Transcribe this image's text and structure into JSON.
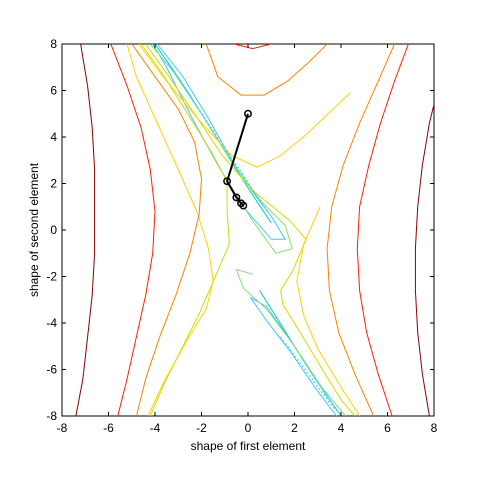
{
  "chart_data": {
    "type": "contour",
    "title": "",
    "xlabel": "shape of first element",
    "ylabel": "shape of second element",
    "xlim": [
      -8,
      8
    ],
    "ylim": [
      -8,
      8
    ],
    "x_ticks": [
      -8,
      -6,
      -4,
      -2,
      0,
      2,
      4,
      6,
      8
    ],
    "y_ticks": [
      -8,
      -6,
      -4,
      -2,
      0,
      2,
      4,
      6,
      8
    ],
    "grid": false,
    "legend": "none",
    "contour_levels": [
      {
        "color": "#00c8c8",
        "curves": [
          [
            [
              -4,
              8
            ],
            [
              -3.3,
              7
            ],
            [
              -2.5,
              5.8
            ],
            [
              -1.5,
              4.2
            ],
            [
              -0.5,
              2.6
            ],
            [
              0.4,
              1.2
            ],
            [
              1.0,
              0.3
            ]
          ],
          [
            [
              4,
              -8
            ],
            [
              3.3,
              -7
            ],
            [
              2.5,
              -5.8
            ],
            [
              1.5,
              -4.2
            ],
            [
              0.5,
              -2.6
            ]
          ]
        ]
      },
      {
        "color": "#40c8ff",
        "curves": [
          [
            [
              -3.9,
              8
            ],
            [
              -2.8,
              6.6
            ],
            [
              -1.7,
              4.8
            ],
            [
              -0.7,
              3.0
            ],
            [
              0.3,
              1.5
            ],
            [
              1.0,
              0.6
            ],
            [
              1.6,
              -0.4
            ],
            [
              1.0,
              -0.4
            ],
            [
              -0.2,
              1.0
            ],
            [
              -1.3,
              2.8
            ],
            [
              -2.4,
              4.8
            ],
            [
              -3.5,
              7.0
            ],
            [
              -4.1,
              8
            ]
          ],
          [
            [
              4.0,
              -8
            ],
            [
              2.9,
              -6.4
            ],
            [
              1.8,
              -4.7
            ],
            [
              0.8,
              -3.3
            ],
            [
              0.1,
              -2.9
            ],
            [
              0.8,
              -3.9
            ],
            [
              1.8,
              -5.2
            ],
            [
              2.9,
              -6.8
            ],
            [
              3.8,
              -8
            ]
          ]
        ]
      },
      {
        "color": "#80e070",
        "curves": [
          [
            [
              -4.2,
              8
            ],
            [
              -3.2,
              6.8
            ],
            [
              -2.0,
              5.0
            ],
            [
              -0.8,
              3.1
            ],
            [
              0.5,
              1.3
            ],
            [
              1.6,
              0.2
            ],
            [
              1.9,
              -0.8
            ],
            [
              1.2,
              -1.0
            ],
            [
              0.2,
              0.4
            ],
            [
              -0.5,
              1.5
            ]
          ],
          [
            [
              4.2,
              -8
            ],
            [
              3.2,
              -6.8
            ],
            [
              2.0,
              -5.0
            ],
            [
              0.8,
              -3.4
            ],
            [
              -0.2,
              -2.5
            ],
            [
              -0.5,
              -1.7
            ],
            [
              0.2,
              -1.9
            ]
          ]
        ]
      },
      {
        "color": "#c8e000",
        "curves": [
          [
            [
              -4.4,
              8
            ],
            [
              -3.4,
              6.6
            ],
            [
              -2.3,
              5.0
            ],
            [
              -1.1,
              3.2
            ],
            [
              0.2,
              1.7
            ],
            [
              1.8,
              0.4
            ],
            [
              2.5,
              -0.4
            ],
            [
              1.9,
              -1.8
            ],
            [
              1.4,
              -2.6
            ],
            [
              1.5,
              -3.2
            ],
            [
              2.3,
              -4.5
            ],
            [
              3.2,
              -6.0
            ],
            [
              4.0,
              -7.3
            ],
            [
              4.6,
              -8
            ]
          ],
          [
            [
              -4.6,
              8
            ],
            [
              -3.6,
              6.6
            ],
            [
              -2.6,
              5.0
            ],
            [
              -1.6,
              3.4
            ],
            [
              -0.9,
              2.1
            ],
            [
              -0.9,
              0.8
            ],
            [
              -0.8,
              -0.6
            ],
            [
              -1.4,
              -2.0
            ],
            [
              -2.1,
              -3.6
            ],
            [
              -2.9,
              -5.2
            ],
            [
              -3.6,
              -6.6
            ],
            [
              -4.2,
              -8
            ]
          ]
        ]
      },
      {
        "color": "#ffd000",
        "curves": [
          [
            [
              -4.7,
              8
            ],
            [
              -3.5,
              6.4
            ],
            [
              -2.0,
              4.6
            ],
            [
              -0.7,
              3.2
            ],
            [
              0.4,
              2.7
            ],
            [
              1.4,
              3.2
            ],
            [
              2.5,
              4.1
            ],
            [
              4.4,
              5.9
            ]
          ],
          [
            [
              -4.3,
              -8
            ],
            [
              -3.6,
              -6.5
            ],
            [
              -2.6,
              -4.7
            ],
            [
              -1.8,
              -3.4
            ],
            [
              -1.5,
              -2.2
            ],
            [
              -1.7,
              -0.8
            ],
            [
              -2.2,
              0.8
            ],
            [
              -3.0,
              2.6
            ],
            [
              -3.9,
              4.6
            ],
            [
              -4.8,
              6.6
            ],
            [
              -5.2,
              8
            ]
          ],
          [
            [
              4.8,
              -8
            ],
            [
              3.9,
              -6.6
            ],
            [
              3.0,
              -5.1
            ],
            [
              2.4,
              -3.7
            ],
            [
              2.1,
              -2.2
            ],
            [
              2.4,
              -0.6
            ],
            [
              3.1,
              1.0
            ]
          ]
        ]
      },
      {
        "color": "#ff8000",
        "curves": [
          [
            [
              -5.0,
              8
            ],
            [
              -4.0,
              6.6
            ],
            [
              -3.0,
              5.2
            ],
            [
              -2.3,
              3.8
            ],
            [
              -2.0,
              2.2
            ],
            [
              -2.1,
              0.7
            ],
            [
              -2.5,
              -1.0
            ],
            [
              -3.1,
              -2.8
            ],
            [
              -3.8,
              -4.6
            ],
            [
              -4.4,
              -6.4
            ],
            [
              -4.8,
              -8
            ]
          ],
          [
            [
              -1.8,
              8
            ],
            [
              -1.3,
              6.6
            ],
            [
              -0.3,
              5.8
            ],
            [
              0.7,
              5.8
            ],
            [
              1.7,
              6.4
            ],
            [
              2.6,
              7.2
            ],
            [
              3.4,
              8
            ]
          ],
          [
            [
              5.4,
              -8
            ],
            [
              4.6,
              -6.2
            ],
            [
              3.9,
              -4.4
            ],
            [
              3.5,
              -2.6
            ],
            [
              3.4,
              -0.8
            ],
            [
              3.6,
              1.0
            ],
            [
              4.1,
              2.8
            ],
            [
              4.8,
              4.6
            ],
            [
              5.6,
              6.4
            ],
            [
              6.3,
              8
            ]
          ]
        ]
      },
      {
        "color": "#ff2000",
        "curves": [
          [
            [
              -5.9,
              8
            ],
            [
              -5.2,
              6.2
            ],
            [
              -4.6,
              4.4
            ],
            [
              -4.2,
              2.6
            ],
            [
              -4.0,
              0.8
            ],
            [
              -4.1,
              -1.0
            ],
            [
              -4.4,
              -2.8
            ],
            [
              -4.8,
              -4.6
            ],
            [
              -5.2,
              -6.4
            ],
            [
              -5.6,
              -8
            ]
          ],
          [
            [
              6.2,
              -8
            ],
            [
              5.6,
              -6.2
            ],
            [
              5.1,
              -4.4
            ],
            [
              4.8,
              -2.6
            ],
            [
              4.7,
              -0.8
            ],
            [
              4.8,
              1.0
            ],
            [
              5.2,
              2.8
            ],
            [
              5.7,
              4.6
            ],
            [
              6.3,
              6.4
            ],
            [
              6.9,
              8
            ]
          ],
          [
            [
              -0.6,
              8
            ],
            [
              0.2,
              7.8
            ],
            [
              1.0,
              8
            ]
          ]
        ]
      },
      {
        "color": "#8b0000",
        "curves": [
          [
            [
              -7.2,
              8
            ],
            [
              -6.9,
              6.2
            ],
            [
              -6.7,
              4.4
            ],
            [
              -6.6,
              2.6
            ],
            [
              -6.6,
              0.8
            ],
            [
              -6.6,
              -1.0
            ],
            [
              -6.7,
              -2.8
            ],
            [
              -6.9,
              -4.6
            ],
            [
              -7.1,
              -6.4
            ],
            [
              -7.4,
              -8
            ]
          ],
          [
            [
              7.8,
              -8
            ],
            [
              7.5,
              -6.2
            ],
            [
              7.3,
              -4.4
            ],
            [
              7.2,
              -2.6
            ],
            [
              7.2,
              -0.8
            ],
            [
              7.3,
              1.0
            ],
            [
              7.5,
              2.8
            ],
            [
              7.8,
              4.6
            ],
            [
              8.0,
              5.4
            ]
          ]
        ]
      }
    ],
    "path": {
      "color": "#000000",
      "points": [
        [
          0.0,
          5.0
        ],
        [
          -0.9,
          2.1
        ],
        [
          -0.5,
          1.4
        ],
        [
          -0.3,
          1.15
        ],
        [
          -0.2,
          1.05
        ]
      ]
    },
    "dotted_ridge": {
      "color": "#40c8ff",
      "segments": [
        [
          [
            -4.0,
            8.0
          ],
          [
            0.9,
            0.7
          ]
        ],
        [
          [
            1.4,
            -4.6
          ],
          [
            3.8,
            -7.8
          ]
        ]
      ]
    }
  }
}
